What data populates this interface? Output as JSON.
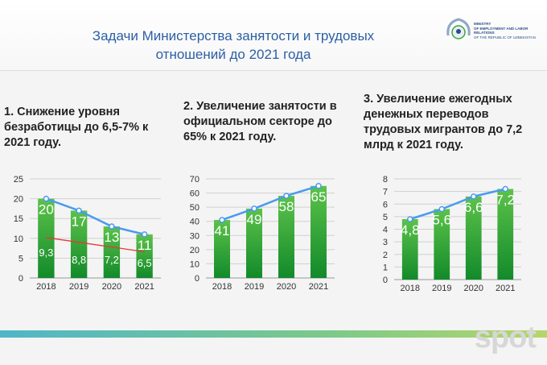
{
  "header": {
    "title_line1": "Задачи Министерства занятости и трудовых",
    "title_line2": "отношений до 2021 года",
    "logo_text": [
      "MINISTRY",
      "OF EMPLOYMENT AND LABOR RELATIONS",
      "OF THE REPUBLIC OF UZBEKISTAN"
    ]
  },
  "headings": [
    "1. Снижение уровня безработицы до 6,5-7% к 2021 году.",
    "2. Увеличение занятости в официальном секторе до 65% к 2021 году.",
    "3. Увеличение ежегодных денежных переводов трудовых мигрантов до 7,2 млрд к 2021 году."
  ],
  "watermark": "spot",
  "colors": {
    "bar": "#3aa63a",
    "line": "#4a9af0",
    "trend": "#e23a3a",
    "title": "#2c5fa5"
  },
  "chart_data": [
    {
      "type": "bar",
      "categories": [
        "2018",
        "2019",
        "2020",
        "2021"
      ],
      "values": [
        20,
        17,
        13,
        11
      ],
      "labels": [
        "20",
        "17",
        "13",
        "11"
      ],
      "line_overlay": true,
      "secondary_labels": [
        "9,3",
        "8,8",
        "7,2",
        "6,5"
      ],
      "trend": {
        "from": 10.2,
        "to": 6.6
      },
      "ylim": [
        0,
        25
      ],
      "yticks": [
        0,
        5,
        10,
        15,
        20,
        25
      ],
      "grid": true
    },
    {
      "type": "bar",
      "categories": [
        "2018",
        "2019",
        "2020",
        "2021"
      ],
      "values": [
        41,
        49,
        58,
        65
      ],
      "labels": [
        "41",
        "49",
        "58",
        "65"
      ],
      "line_overlay": true,
      "ylim": [
        0,
        70
      ],
      "yticks": [
        0,
        10,
        20,
        30,
        40,
        50,
        60,
        70
      ],
      "grid": true
    },
    {
      "type": "bar",
      "categories": [
        "2018",
        "2019",
        "2020",
        "2021"
      ],
      "values": [
        4.8,
        5.6,
        6.6,
        7.2
      ],
      "labels": [
        "4,8",
        "5,6",
        "6,6",
        "7,2"
      ],
      "line_overlay": true,
      "ylim": [
        0,
        8
      ],
      "yticks": [
        0,
        1,
        2,
        3,
        4,
        5,
        6,
        7,
        8
      ],
      "grid": true
    }
  ]
}
